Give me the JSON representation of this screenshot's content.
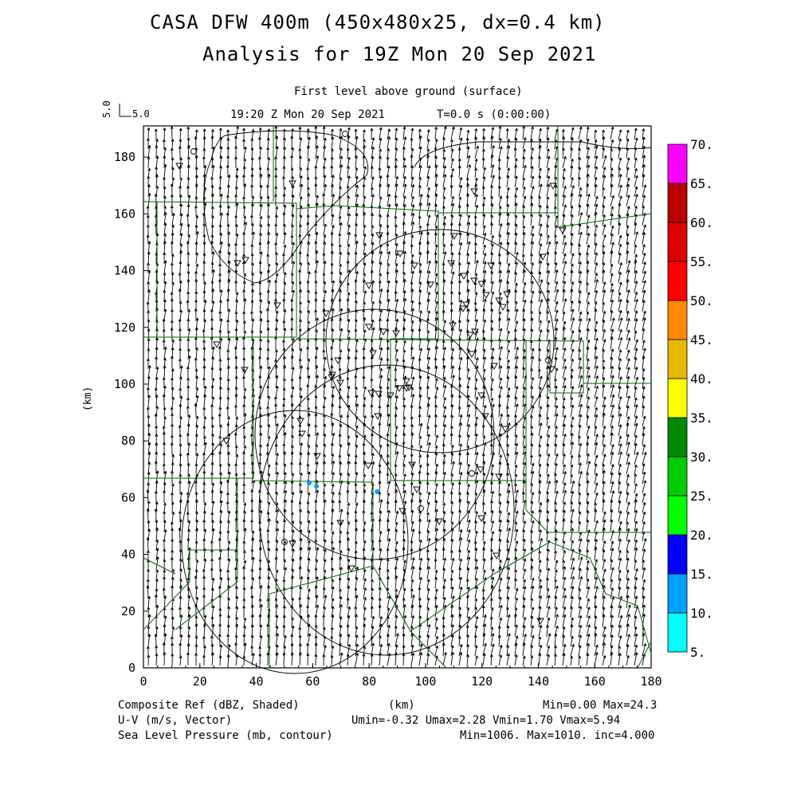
{
  "titles": {
    "line1": "CASA DFW 400m (450x480x25, dx=0.4 km)",
    "line2": "Analysis for 19Z Mon 20 Sep 2021",
    "level": "First level above ground (surface)",
    "time": "19:20 Z Mon 20 Sep 2021",
    "elapsed": "T=0.0 s (0:00:00)",
    "ref_vector_rot": "5.0",
    "ref_vector": "5.0"
  },
  "axes": {
    "xlabel": "(km)",
    "ylabel": "(km)",
    "x_ticks": [
      "0",
      "20",
      "40",
      "60",
      "80",
      "100",
      "120",
      "140",
      "160",
      "180"
    ],
    "y_ticks": [
      "0",
      "20",
      "40",
      "60",
      "80",
      "100",
      "120",
      "140",
      "160",
      "180"
    ],
    "xlim": [
      0,
      180
    ],
    "ylim": [
      0,
      191
    ]
  },
  "colorbar": {
    "labels": [
      "5.",
      "10.",
      "15.",
      "20.",
      "25.",
      "30.",
      "35.",
      "40.",
      "45.",
      "50.",
      "55.",
      "60.",
      "65.",
      "70."
    ],
    "colors": [
      "#00ffff",
      "#00a0ff",
      "#0000ff",
      "#00ff00",
      "#00cc00",
      "#008800",
      "#ffff00",
      "#e6b800",
      "#ff8800",
      "#ff0000",
      "#dd0000",
      "#bb0000",
      "#ff00ff"
    ]
  },
  "footer": {
    "field1": "Composite Ref (dBZ, Shaded)",
    "field2": "U-V (m/s, Vector)",
    "field3": "Sea Level Pressure (mb, contour)",
    "xunit": "(km)",
    "stats1": "Min=0.00 Max=24.3",
    "stats2": "Umin=-0.32 Umax=2.28 Vmin=1.70 Vmax=5.94",
    "stats3": "Min=1006. Max=1010. inc=4.000"
  },
  "colors": {
    "county_lines": "#006600",
    "arrows": "#000000",
    "echo": "#00a0ff"
  }
}
